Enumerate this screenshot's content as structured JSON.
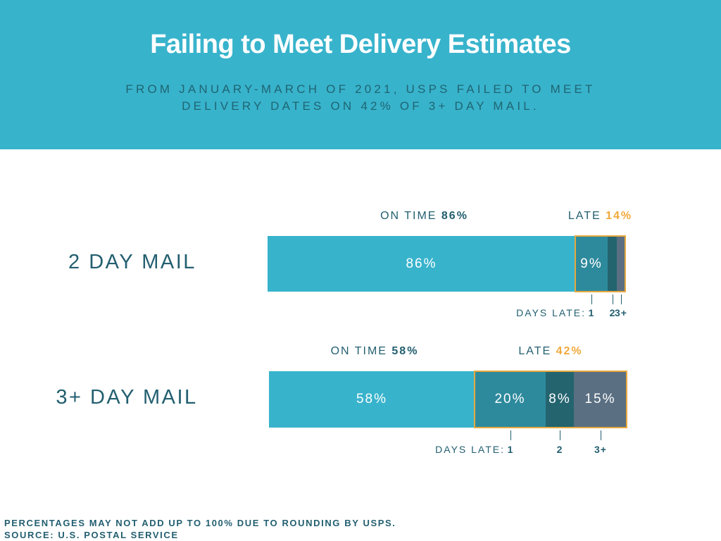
{
  "header": {
    "title": "Failing to Meet Delivery Estimates",
    "subtitle": "FROM JANUARY-MARCH OF 2021, USPS FAILED TO MEET DELIVERY DATES ON 42% OF 3+ DAY MAIL."
  },
  "labels": {
    "on_time": "ON TIME",
    "late": "LATE",
    "days_late": "DAYS LATE:"
  },
  "colors": {
    "header_bg": "#38b3cc",
    "on_time": "#38b3cc",
    "late_1": "#2d8a9c",
    "late_2": "#24646f",
    "late_3plus": "#5a6f82",
    "late_outline": "#e6a93f",
    "late_number": "#f2a93b",
    "text": "#235f70"
  },
  "chart_data": {
    "type": "bar",
    "orientation": "horizontal",
    "stacked": true,
    "categories": [
      "2 DAY MAIL",
      "3+ DAY MAIL"
    ],
    "series": [
      {
        "name": "ON TIME",
        "values": [
          86,
          58
        ]
      },
      {
        "name": "1",
        "values": [
          9,
          20
        ]
      },
      {
        "name": "2",
        "values": [
          2.5,
          8
        ]
      },
      {
        "name": "3+",
        "values": [
          2.5,
          15
        ]
      }
    ],
    "totals": {
      "on_time": [
        "86%",
        "58%"
      ],
      "late": [
        "14%",
        "42%"
      ]
    },
    "segment_labels": [
      [
        "86%",
        "9%",
        "",
        ""
      ],
      [
        "58%",
        "20%",
        "8%",
        "15%"
      ]
    ],
    "tick_labels": [
      "1",
      "2",
      "3+"
    ],
    "xlim": [
      0,
      100
    ]
  },
  "footer": {
    "note": "PERCENTAGES MAY NOT ADD UP TO 100% DUE TO ROUNDING BY USPS.",
    "source": "SOURCE: U.S. POSTAL SERVICE"
  }
}
